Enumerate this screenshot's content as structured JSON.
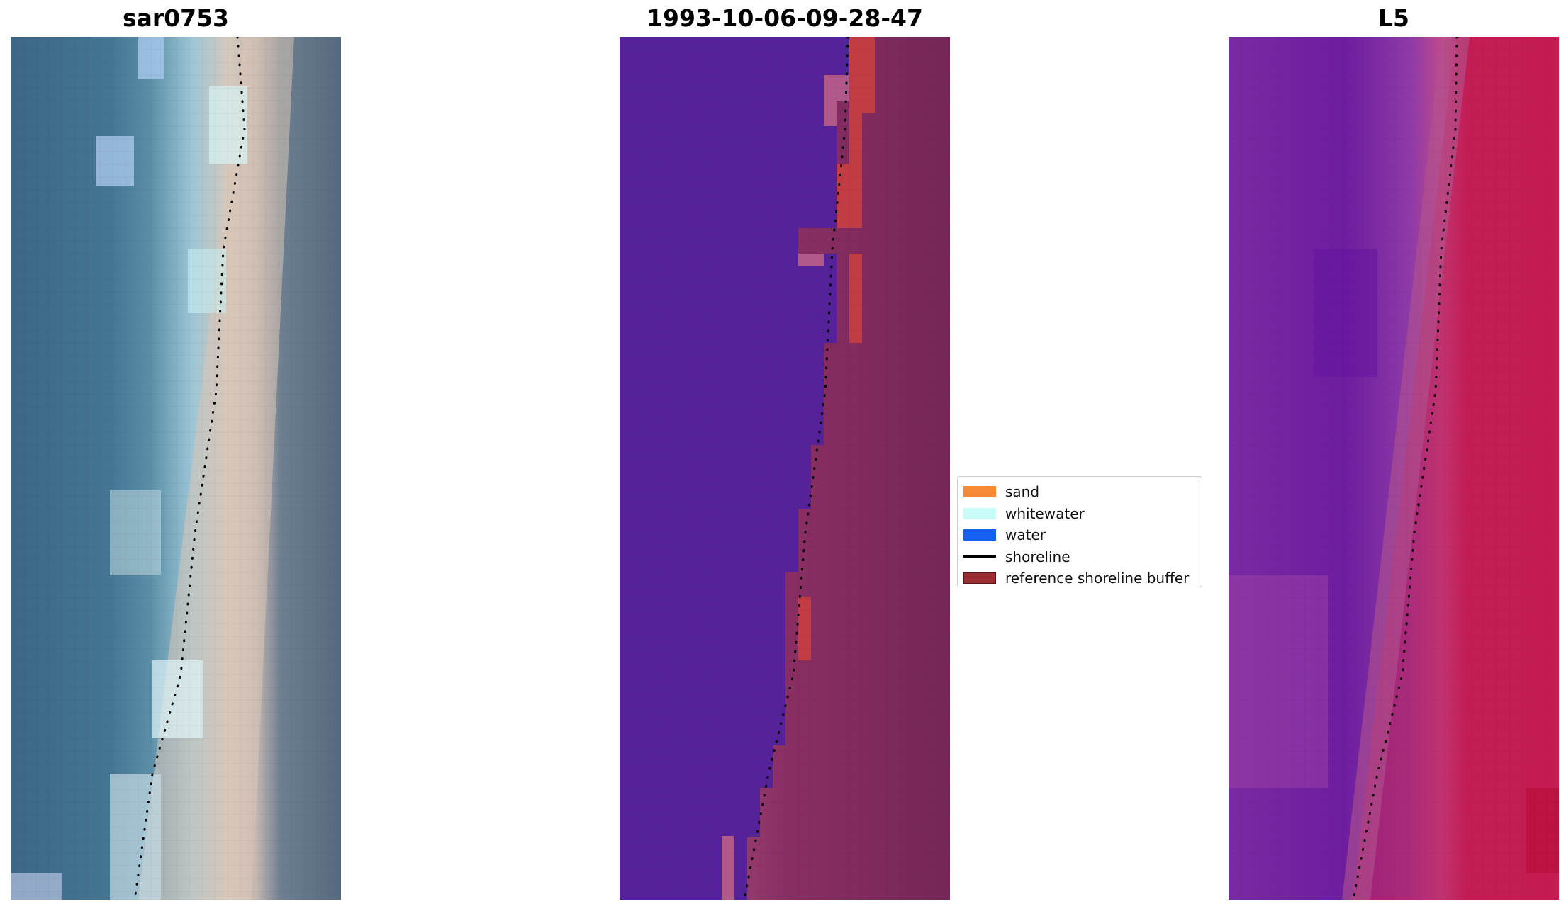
{
  "panels": [
    {
      "title": "sar0753"
    },
    {
      "title": "1993-10-06-09-28-47"
    },
    {
      "title": "L5"
    }
  ],
  "legend": {
    "items": [
      {
        "label": "sand",
        "color": "#f78a34",
        "kind": "patch"
      },
      {
        "label": "whitewater",
        "color": "#c8fbf8",
        "kind": "patch"
      },
      {
        "label": "water",
        "color": "#1460f0",
        "kind": "patch"
      },
      {
        "label": "shoreline",
        "color": "#000000",
        "kind": "line"
      },
      {
        "label": "reference shoreline buffer",
        "color": "#9b2e32",
        "kind": "patch"
      }
    ]
  },
  "colors": {
    "classified_water": "#55229a",
    "classified_sand_mix": "#b15a8a",
    "classified_buffer": "#c23c44",
    "classified_land": "#7a2457",
    "rgb_ocean": "#3f6f8e",
    "rgb_beach": "#d8c6b8",
    "rgb_land": "#5b6e82",
    "ndwi_water": "#6a1aa0",
    "ndwi_land": "#c8174a"
  }
}
